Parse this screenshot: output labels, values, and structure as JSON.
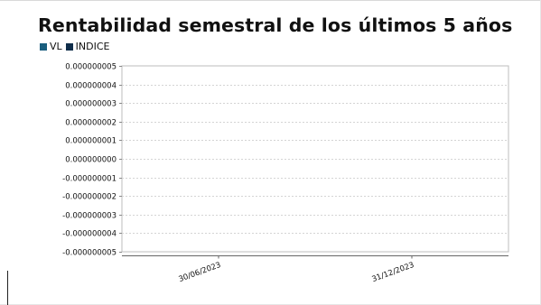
{
  "chart_data": {
    "type": "line",
    "title": "Rentabilidad semestral de los últimos 5 años",
    "xlabel": "",
    "ylabel": "",
    "categories": [
      "30/06/2023",
      "31/12/2023"
    ],
    "series": [
      {
        "name": "VL",
        "color": "#1a5e7e",
        "values": [
          null,
          null
        ]
      },
      {
        "name": "INDICE",
        "color": "#0f2d4a",
        "values": [
          null,
          null
        ]
      }
    ],
    "y_ticks": [
      "0.000000005",
      "0.000000004",
      "0.000000003",
      "0.000000002",
      "0.000000001",
      "0.000000000",
      "-0.000000001",
      "-0.000000002",
      "-0.000000003",
      "-0.000000004",
      "-0.000000005"
    ],
    "ylim": [
      -5e-09,
      5e-09
    ],
    "grid": true,
    "legend_position": "top-left"
  }
}
